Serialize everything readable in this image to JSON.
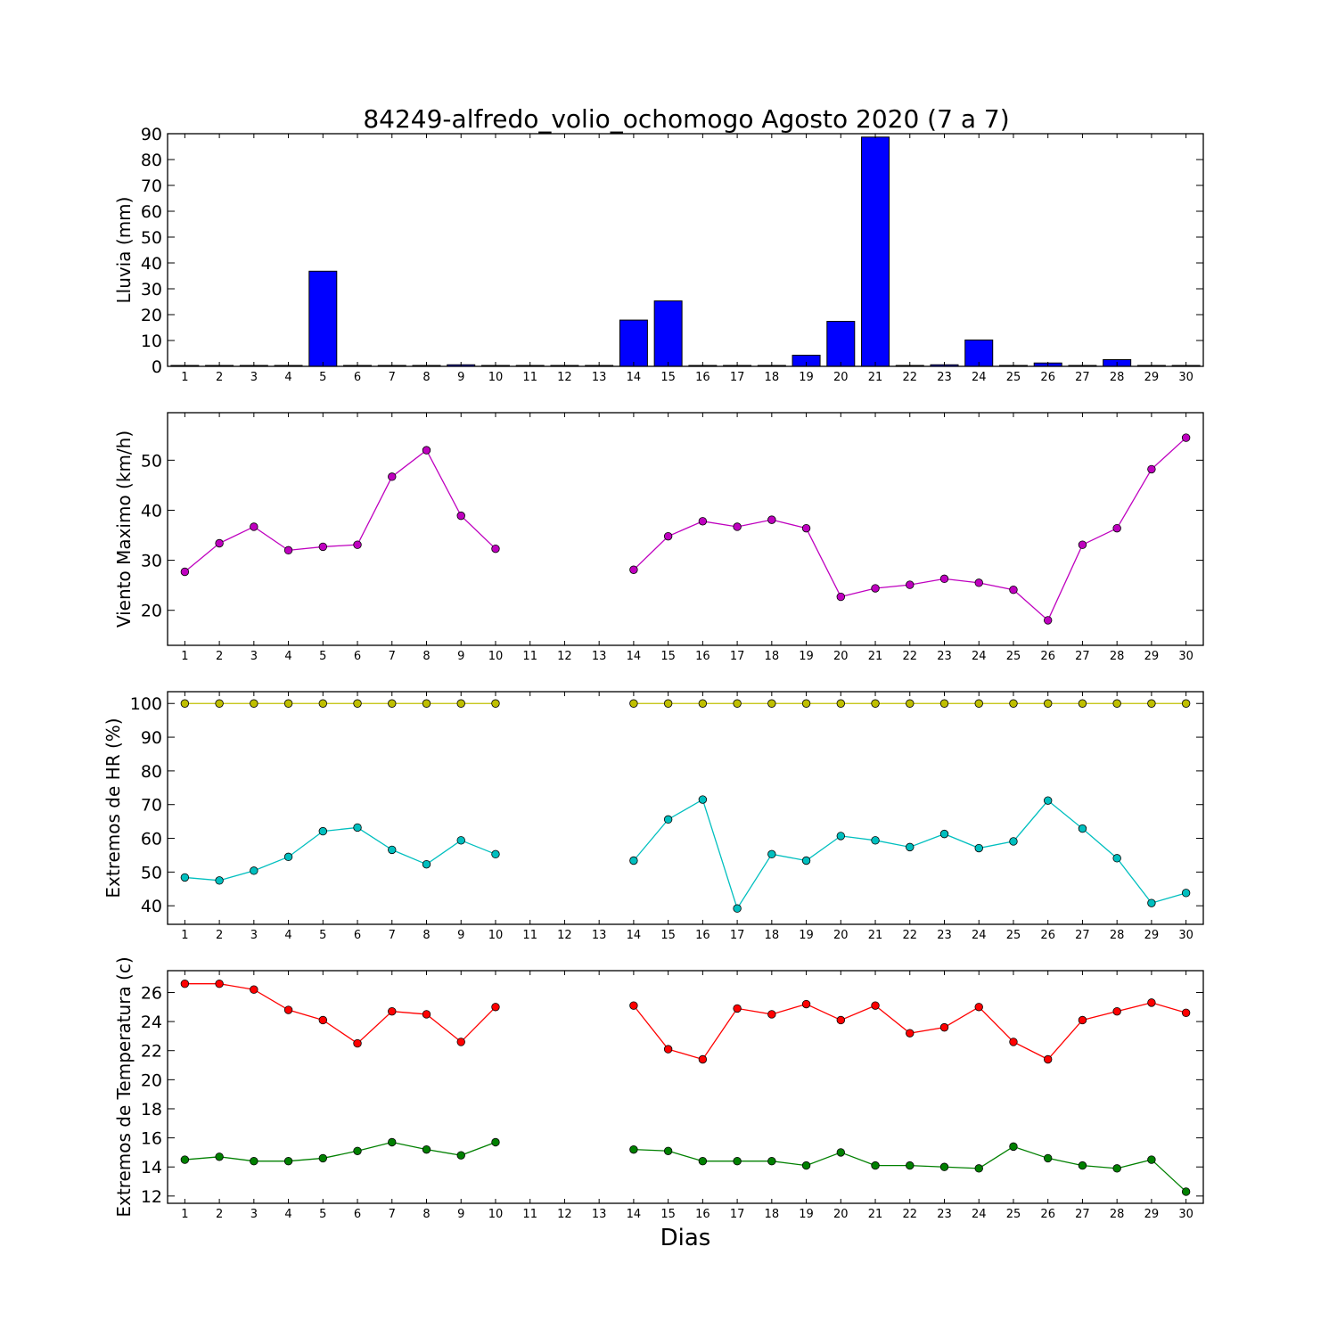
{
  "title": "84249-alfredo_volio_ochomogo Agosto 2020  (7 a 7)",
  "xlabel": "Dias",
  "chart_data": [
    {
      "type": "bar",
      "ylabel": "Lluvia (mm)",
      "ylim": [
        0,
        90
      ],
      "yticks": [
        0,
        10,
        20,
        30,
        40,
        50,
        60,
        70,
        80,
        90
      ],
      "xlim": [
        0.5,
        30.5
      ],
      "xticks": [
        1,
        2,
        3,
        4,
        5,
        6,
        7,
        8,
        9,
        10,
        11,
        12,
        13,
        14,
        15,
        16,
        17,
        18,
        19,
        20,
        21,
        22,
        23,
        24,
        25,
        26,
        27,
        28,
        29,
        30
      ],
      "color": "#0000ff",
      "x": [
        1,
        2,
        3,
        4,
        5,
        6,
        7,
        8,
        9,
        10,
        11,
        12,
        13,
        14,
        15,
        16,
        17,
        18,
        19,
        20,
        21,
        22,
        23,
        24,
        25,
        26,
        27,
        28,
        29,
        30
      ],
      "values": [
        0,
        0,
        0,
        0,
        36.8,
        0.3,
        0.2,
        0.3,
        0.6,
        0,
        0,
        0,
        0,
        17.9,
        25.3,
        0,
        0,
        0,
        4.3,
        17.4,
        88.7,
        0,
        0.6,
        10.2,
        0.2,
        1.3,
        0,
        2.6,
        0,
        0
      ]
    },
    {
      "type": "line",
      "ylabel": "Viento Maximo (km/h)",
      "ylim": [
        13,
        59.5
      ],
      "yticks": [
        20,
        30,
        40,
        50
      ],
      "xlim": [
        0.5,
        30.5
      ],
      "xticks": [
        1,
        2,
        3,
        4,
        5,
        6,
        7,
        8,
        9,
        10,
        11,
        12,
        13,
        14,
        15,
        16,
        17,
        18,
        19,
        20,
        21,
        22,
        23,
        24,
        25,
        26,
        27,
        28,
        29,
        30
      ],
      "series": [
        {
          "color": "#bf00bf",
          "x": [
            1,
            2,
            3,
            4,
            5,
            6,
            7,
            8,
            9,
            10,
            11,
            12,
            13,
            14,
            15,
            16,
            17,
            18,
            19,
            20,
            21,
            22,
            23,
            24,
            25,
            26,
            27,
            28,
            29,
            30
          ],
          "y": [
            27.7,
            33.4,
            36.7,
            32.0,
            32.7,
            33.1,
            46.7,
            52.0,
            38.9,
            32.3,
            null,
            null,
            null,
            28.1,
            34.8,
            37.8,
            36.7,
            38.1,
            36.4,
            22.7,
            24.4,
            25.1,
            26.3,
            25.5,
            24.1,
            18.0,
            33.1,
            36.4,
            48.2,
            54.5
          ]
        }
      ]
    },
    {
      "type": "line",
      "ylabel": "Extremos de HR (%)",
      "ylim": [
        34.5,
        103.5
      ],
      "yticks": [
        40,
        50,
        60,
        70,
        80,
        90,
        100
      ],
      "xlim": [
        0.5,
        30.5
      ],
      "xticks": [
        1,
        2,
        3,
        4,
        5,
        6,
        7,
        8,
        9,
        10,
        11,
        12,
        13,
        14,
        15,
        16,
        17,
        18,
        19,
        20,
        21,
        22,
        23,
        24,
        25,
        26,
        27,
        28,
        29,
        30
      ],
      "series": [
        {
          "color": "#bfbf00",
          "x": [
            1,
            2,
            3,
            4,
            5,
            6,
            7,
            8,
            9,
            10,
            11,
            12,
            13,
            14,
            15,
            16,
            17,
            18,
            19,
            20,
            21,
            22,
            23,
            24,
            25,
            26,
            27,
            28,
            29,
            30
          ],
          "y": [
            100,
            100,
            100,
            100,
            100,
            100,
            100,
            100,
            100,
            100,
            null,
            null,
            null,
            100,
            100,
            100,
            100,
            100,
            100,
            100,
            100,
            100,
            100,
            100,
            100,
            100,
            100,
            100,
            100,
            100
          ]
        },
        {
          "color": "#00bfbf",
          "x": [
            1,
            2,
            3,
            4,
            5,
            6,
            7,
            8,
            9,
            10,
            11,
            12,
            13,
            14,
            15,
            16,
            17,
            18,
            19,
            20,
            21,
            22,
            23,
            24,
            25,
            26,
            27,
            28,
            29,
            30
          ],
          "y": [
            48.4,
            47.5,
            50.4,
            54.5,
            62.1,
            63.2,
            56.6,
            52.3,
            59.4,
            55.3,
            null,
            null,
            null,
            53.4,
            65.6,
            71.5,
            39.2,
            55.3,
            53.4,
            60.7,
            59.4,
            57.4,
            61.3,
            57.1,
            59.1,
            71.2,
            62.9,
            54.1,
            40.8,
            43.8
          ]
        }
      ]
    },
    {
      "type": "line",
      "ylabel": "Extremos de Temperatura (c)",
      "ylim": [
        11.5,
        27.5
      ],
      "yticks": [
        12,
        14,
        16,
        18,
        20,
        22,
        24,
        26
      ],
      "xlim": [
        0.5,
        30.5
      ],
      "xticks": [
        1,
        2,
        3,
        4,
        5,
        6,
        7,
        8,
        9,
        10,
        11,
        12,
        13,
        14,
        15,
        16,
        17,
        18,
        19,
        20,
        21,
        22,
        23,
        24,
        25,
        26,
        27,
        28,
        29,
        30
      ],
      "series": [
        {
          "color": "#ff0000",
          "x": [
            1,
            2,
            3,
            4,
            5,
            6,
            7,
            8,
            9,
            10,
            11,
            12,
            13,
            14,
            15,
            16,
            17,
            18,
            19,
            20,
            21,
            22,
            23,
            24,
            25,
            26,
            27,
            28,
            29,
            30
          ],
          "y": [
            26.6,
            26.6,
            26.2,
            24.8,
            24.1,
            22.5,
            24.7,
            24.5,
            22.6,
            25.0,
            null,
            null,
            null,
            25.1,
            22.1,
            21.4,
            24.9,
            24.5,
            25.2,
            24.1,
            25.1,
            23.2,
            23.6,
            25.0,
            22.6,
            21.4,
            24.1,
            24.7,
            25.3,
            24.6
          ]
        },
        {
          "color": "#008000",
          "x": [
            1,
            2,
            3,
            4,
            5,
            6,
            7,
            8,
            9,
            10,
            11,
            12,
            13,
            14,
            15,
            16,
            17,
            18,
            19,
            20,
            21,
            22,
            23,
            24,
            25,
            26,
            27,
            28,
            29,
            30
          ],
          "y": [
            14.5,
            14.7,
            14.4,
            14.4,
            14.6,
            15.1,
            15.7,
            15.2,
            14.8,
            15.7,
            null,
            null,
            null,
            15.2,
            15.1,
            14.4,
            14.4,
            14.4,
            14.1,
            15.0,
            14.1,
            14.1,
            14.0,
            13.9,
            15.4,
            14.6,
            14.1,
            13.9,
            14.5,
            12.3
          ]
        }
      ]
    }
  ]
}
